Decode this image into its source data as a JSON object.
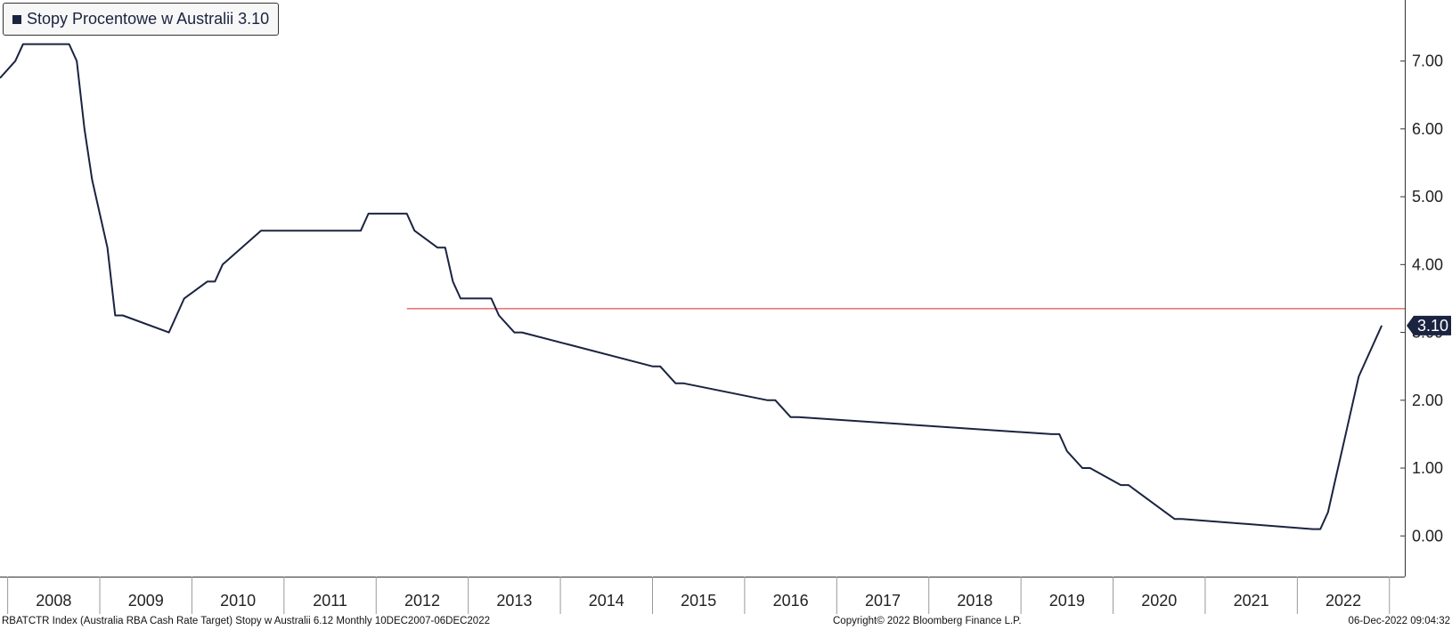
{
  "legend": {
    "label": "Stopy Procentowe w Australii 3.10",
    "color": "#1a2340"
  },
  "footer": {
    "left": "RBATCTR Index (Australia RBA Cash Rate Target) Stopy w Australii 6.12  Monthly 10DEC2007-06DEC2022",
    "center": "Copyright© 2022 Bloomberg Finance L.P.",
    "right": "06-Dec-2022 09:04:32"
  },
  "chart_data": {
    "type": "line",
    "series": [
      {
        "name": "Stopy Procentowe w Australii",
        "color": "#1a2340",
        "x": [
          "2007-12",
          "2008-02",
          "2008-03",
          "2008-04",
          "2008-05",
          "2008-06",
          "2008-07",
          "2008-08",
          "2008-09",
          "2008-10",
          "2008-11",
          "2008-12",
          "2009-02",
          "2009-03",
          "2009-04",
          "2009-10",
          "2009-11",
          "2009-12",
          "2010-03",
          "2010-04",
          "2010-05",
          "2010-10",
          "2010-11",
          "2011-10",
          "2011-11",
          "2011-12",
          "2012-04",
          "2012-05",
          "2012-06",
          "2012-09",
          "2012-10",
          "2012-11",
          "2012-12",
          "2013-04",
          "2013-05",
          "2013-07",
          "2013-08",
          "2015-01",
          "2015-02",
          "2015-04",
          "2015-05",
          "2016-04",
          "2016-05",
          "2016-07",
          "2016-08",
          "2019-05",
          "2019-06",
          "2019-07",
          "2019-09",
          "2019-10",
          "2020-02",
          "2020-03",
          "2020-09",
          "2020-10",
          "2022-03",
          "2022-04",
          "2022-05",
          "2022-06",
          "2022-07",
          "2022-08",
          "2022-09",
          "2022-10",
          "2022-11",
          "2022-12"
        ],
        "y": [
          6.75,
          7.0,
          7.25,
          7.25,
          7.25,
          7.25,
          7.25,
          7.25,
          7.25,
          7.0,
          6.0,
          5.25,
          4.25,
          3.25,
          3.25,
          3.0,
          3.25,
          3.5,
          3.75,
          3.75,
          4.0,
          4.5,
          4.5,
          4.5,
          4.5,
          4.75,
          4.75,
          4.75,
          4.5,
          4.25,
          4.25,
          3.75,
          3.5,
          3.5,
          3.25,
          3.0,
          3.0,
          2.5,
          2.5,
          2.25,
          2.25,
          2.0,
          2.0,
          1.75,
          1.75,
          1.5,
          1.5,
          1.25,
          1.0,
          1.0,
          0.75,
          0.75,
          0.25,
          0.25,
          0.1,
          0.1,
          0.35,
          0.85,
          1.35,
          1.85,
          2.35,
          2.6,
          2.85,
          3.1
        ]
      }
    ],
    "reference_line": {
      "value": 3.35,
      "color": "#e05050"
    },
    "last_value": {
      "value": 3.1,
      "label": "3.10"
    },
    "y_axis": {
      "side": "right",
      "ylim": [
        -0.6,
        7.9
      ],
      "ticks": [
        0,
        1,
        2,
        3,
        4,
        5,
        6,
        7
      ],
      "tick_labels": [
        "0.00",
        "1.00",
        "2.00",
        "3.00",
        "4.00",
        "5.00",
        "6.00",
        "7.00"
      ]
    },
    "x_axis": {
      "xlim": [
        "2007-12",
        "2023-03"
      ],
      "year_labels": [
        "2008",
        "2009",
        "2010",
        "2011",
        "2012",
        "2013",
        "2014",
        "2015",
        "2016",
        "2017",
        "2018",
        "2019",
        "2020",
        "2021",
        "2022"
      ]
    },
    "grid": false
  }
}
